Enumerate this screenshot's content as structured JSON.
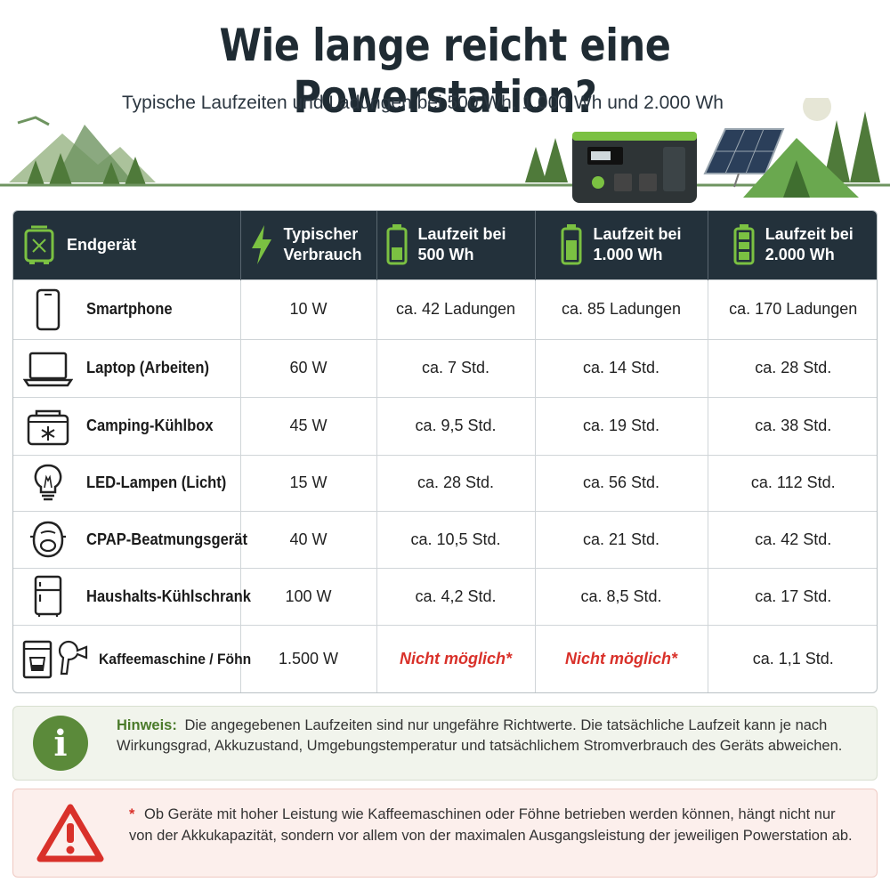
{
  "title": "Wie lange reicht eine Powerstation?",
  "subtitle": "Typische Laufzeiten und Ladungen bei 500 Wh, 1.000 Wh und 2.000 Wh",
  "colors": {
    "header_bg": "#23313b",
    "accent_green": "#7bc142",
    "danger_red": "#d9312a",
    "note_bg": "#f1f4ec",
    "warn_bg": "#fcefec"
  },
  "table": {
    "headers": [
      {
        "icon": "powerstation-icon",
        "label_line1": "Endgerät",
        "label_line2": ""
      },
      {
        "icon": "lightning-icon",
        "label_line1": "Typischer",
        "label_line2": "Verbrauch"
      },
      {
        "icon": "battery-icon",
        "label_line1": "Laufzeit bei",
        "label_line2": "500 Wh"
      },
      {
        "icon": "battery-icon",
        "label_line1": "Laufzeit bei",
        "label_line2": "1.000 Wh"
      },
      {
        "icon": "battery-icon",
        "label_line1": "Laufzeit bei",
        "label_line2": "2.000 Wh"
      }
    ],
    "rows": [
      {
        "icon": "smartphone-icon",
        "device": "Smartphone",
        "consumption": "10 W",
        "wh500": "ca. 42 Ladungen",
        "wh1000": "ca. 85 Ladungen",
        "wh2000": "ca. 170 Ladungen"
      },
      {
        "icon": "laptop-icon",
        "device": "Laptop (Arbeiten)",
        "consumption": "60 W",
        "wh500": "ca. 7 Std.",
        "wh1000": "ca. 14 Std.",
        "wh2000": "ca. 28 Std."
      },
      {
        "icon": "cooler-box-icon",
        "device": "Camping-Kühlbox",
        "consumption": "45 W",
        "wh500": "ca. 9,5 Std.",
        "wh1000": "ca. 19 Std.",
        "wh2000": "ca. 38 Std."
      },
      {
        "icon": "light-bulb-icon",
        "device": "LED-Lampen (Licht)",
        "consumption": "15 W",
        "wh500": "ca. 28 Std.",
        "wh1000": "ca. 56 Std.",
        "wh2000": "ca. 112 Std."
      },
      {
        "icon": "cpap-mask-icon",
        "device": "CPAP-Beatmungsgerät",
        "consumption": "40 W",
        "wh500": "ca. 10,5 Std.",
        "wh1000": "ca. 21 Std.",
        "wh2000": "ca. 42 Std."
      },
      {
        "icon": "fridge-icon",
        "device": "Haushalts-Kühlschrank",
        "consumption": "100 W",
        "wh500": "ca. 4,2 Std.",
        "wh1000": "ca. 8,5 Std.",
        "wh2000": "ca. 17 Std."
      },
      {
        "icon": "coffee-machine-hairdryer-icon",
        "device": "Kaffeemaschine / Föhn",
        "consumption": "1.500 W",
        "wh500": "Nicht möglich*",
        "wh1000": "Nicht möglich*",
        "wh2000": "ca. 1,1 Std."
      }
    ]
  },
  "note": {
    "icon": "info-icon",
    "label": "Hinweis:",
    "text": "Die angegebenen Laufzeiten sind nur ungefähre Richtwerte. Die tatsächliche Laufzeit kann je nach Wirkungsgrad, Akkuzustand, Umgebungstemperatur und tatsächlichem Stromverbrauch des Geräts abweichen."
  },
  "warning": {
    "icon": "warning-triangle-icon",
    "marker": "*",
    "text": "Ob Geräte mit hoher Leistung wie Kaffeemaschinen oder Föhne betrieben werden können, hängt nicht nur von der Akkukapazität, sondern vor allem von der maximalen Ausgangsleistung der jeweiligen Powerstation ab."
  }
}
